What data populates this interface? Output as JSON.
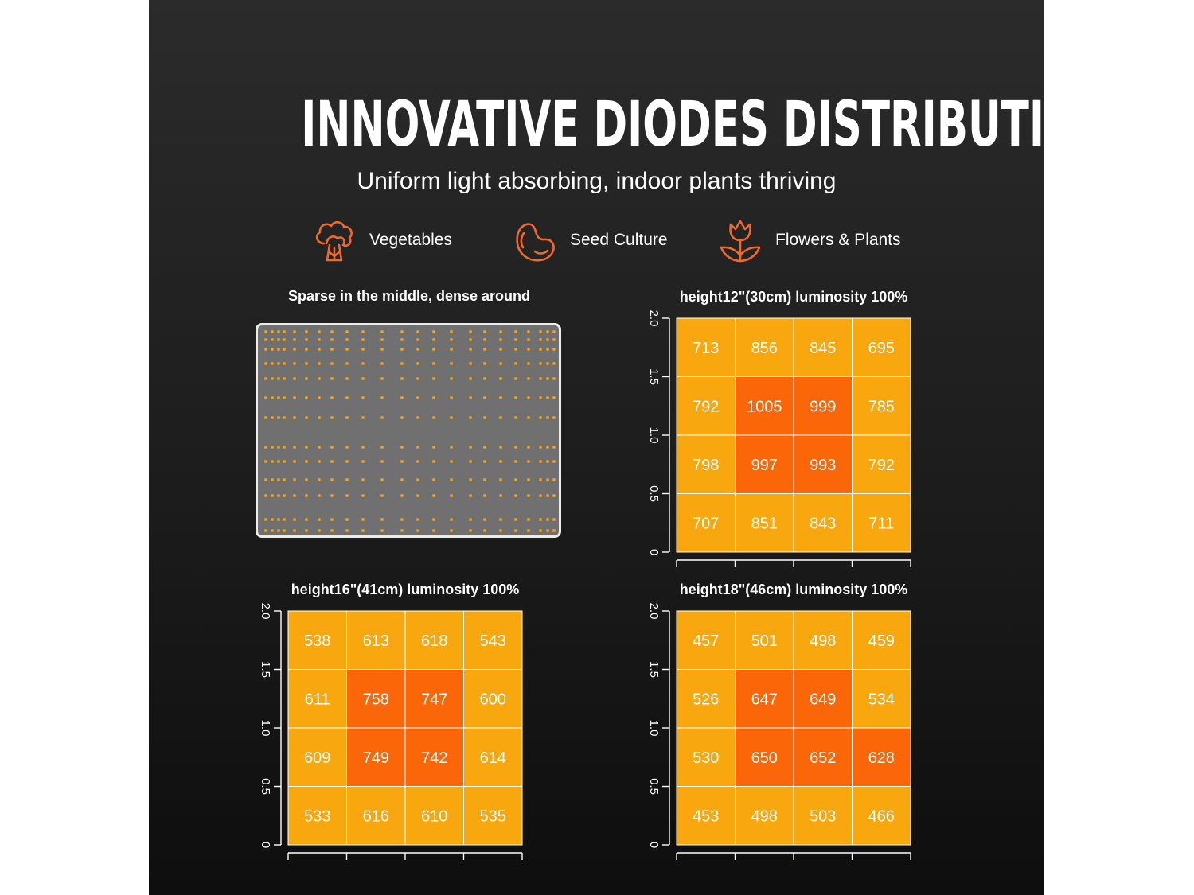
{
  "header": {
    "title": "INNOVATIVE DIODES DISTRIBUTION",
    "subtitle": "Uniform light absorbing, indoor plants thriving"
  },
  "features": [
    {
      "label": "Vegetables",
      "icon": "broccoli-icon"
    },
    {
      "label": "Seed Culture",
      "icon": "bean-icon"
    },
    {
      "label": "Flowers & Plants",
      "icon": "tulip-icon"
    }
  ],
  "board": {
    "title": "Sparse in the middle, dense around"
  },
  "colors": {
    "accent": "#ee6a2c",
    "cell_normal": "#f8a80e",
    "cell_high": "#fb6609",
    "diode": "#f4a520",
    "board": "#707070"
  },
  "chart_data": [
    {
      "type": "heatmap",
      "title": "height12\"(30cm)  luminosity 100%",
      "xlim": [
        0,
        2.0
      ],
      "ylim": [
        0,
        2.0
      ],
      "x_ticks": [
        "0",
        "0.5",
        "1.0",
        "1.5",
        "2.0"
      ],
      "y_ticks": [
        "0",
        "0.5",
        "1.0",
        "1.5",
        "2.0"
      ],
      "rows": [
        [
          713,
          856,
          845,
          695
        ],
        [
          792,
          1005,
          999,
          785
        ],
        [
          798,
          997,
          993,
          792
        ],
        [
          707,
          851,
          843,
          711
        ]
      ]
    },
    {
      "type": "heatmap",
      "title": "height16\"(41cm)  luminosity 100%",
      "xlim": [
        0,
        2.0
      ],
      "ylim": [
        0,
        2.0
      ],
      "x_ticks": [
        "0",
        "0.5",
        "1.0",
        "1.5",
        "2.0"
      ],
      "y_ticks": [
        "0",
        "0.5",
        "1.0",
        "1.5",
        "2.0"
      ],
      "rows": [
        [
          538,
          613,
          618,
          543
        ],
        [
          611,
          758,
          747,
          600
        ],
        [
          609,
          749,
          742,
          614
        ],
        [
          533,
          616,
          610,
          535
        ]
      ]
    },
    {
      "type": "heatmap",
      "title": "height18\"(46cm)  luminosity 100%",
      "xlim": [
        0,
        2.0
      ],
      "ylim": [
        0,
        2.0
      ],
      "x_ticks": [
        "0",
        "0.5",
        "1.0",
        "1.5",
        "2.0"
      ],
      "y_ticks": [
        "0",
        "0.5",
        "1.0",
        "1.5",
        "2.0"
      ],
      "rows": [
        [
          457,
          501,
          498,
          459
        ],
        [
          526,
          647,
          649,
          534
        ],
        [
          530,
          650,
          652,
          628
        ],
        [
          453,
          498,
          503,
          466
        ]
      ]
    }
  ]
}
